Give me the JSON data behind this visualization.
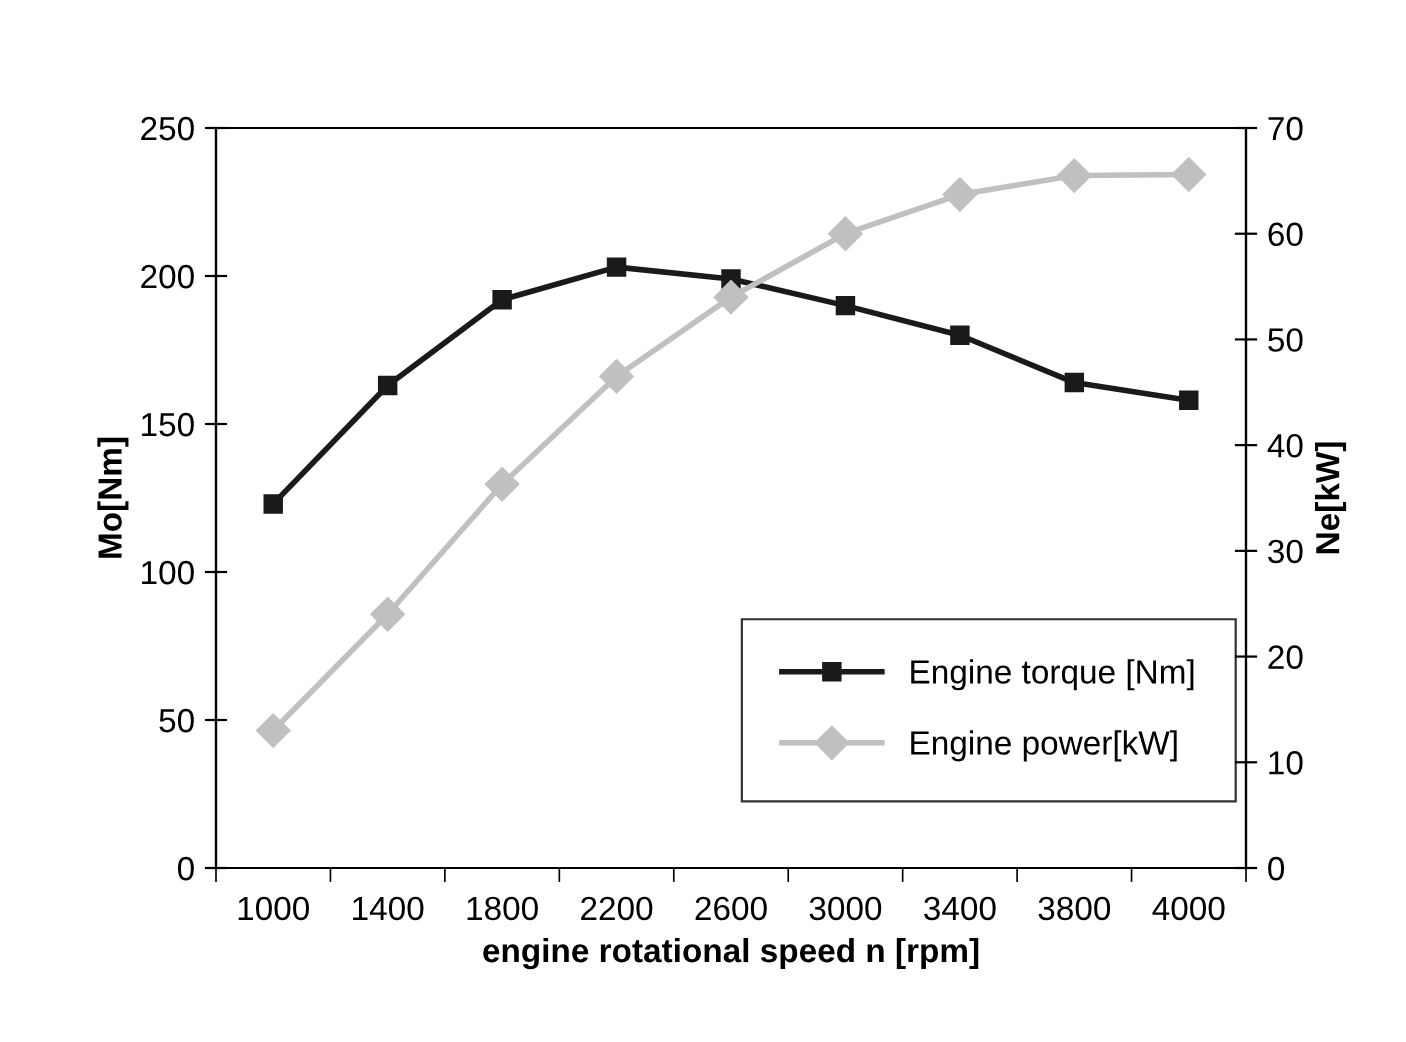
{
  "chart_data": {
    "type": "line",
    "xlabel": "engine rotational speed n [rpm]",
    "ylabel": "Mo[Nm]",
    "y2label": "Ne[kW]",
    "categories": [
      "1000",
      "1400",
      "1800",
      "2200",
      "2600",
      "3000",
      "3400",
      "3800",
      "4000"
    ],
    "series": [
      {
        "name": "Engine torque [Nm]",
        "color": "#1a1a1a",
        "marker": "square",
        "values": [
          123,
          163,
          192,
          203,
          199,
          190,
          180,
          164,
          158
        ]
      },
      {
        "name": "Engine power[kW]",
        "color": "#c0c0c0",
        "marker": "diamond",
        "axis": "y2",
        "values": [
          13,
          24,
          36.3,
          46.5,
          54,
          60,
          63.7,
          65.5,
          65.6
        ]
      }
    ],
    "ylim": [
      0,
      250
    ],
    "yticks": [
      0,
      50,
      100,
      150,
      200,
      250
    ],
    "y2lim": [
      0,
      70
    ],
    "y2ticks": [
      0,
      10,
      20,
      30,
      40,
      50,
      60,
      70
    ],
    "grid": false,
    "legend": "bottom right",
    "line_style": "solid"
  }
}
